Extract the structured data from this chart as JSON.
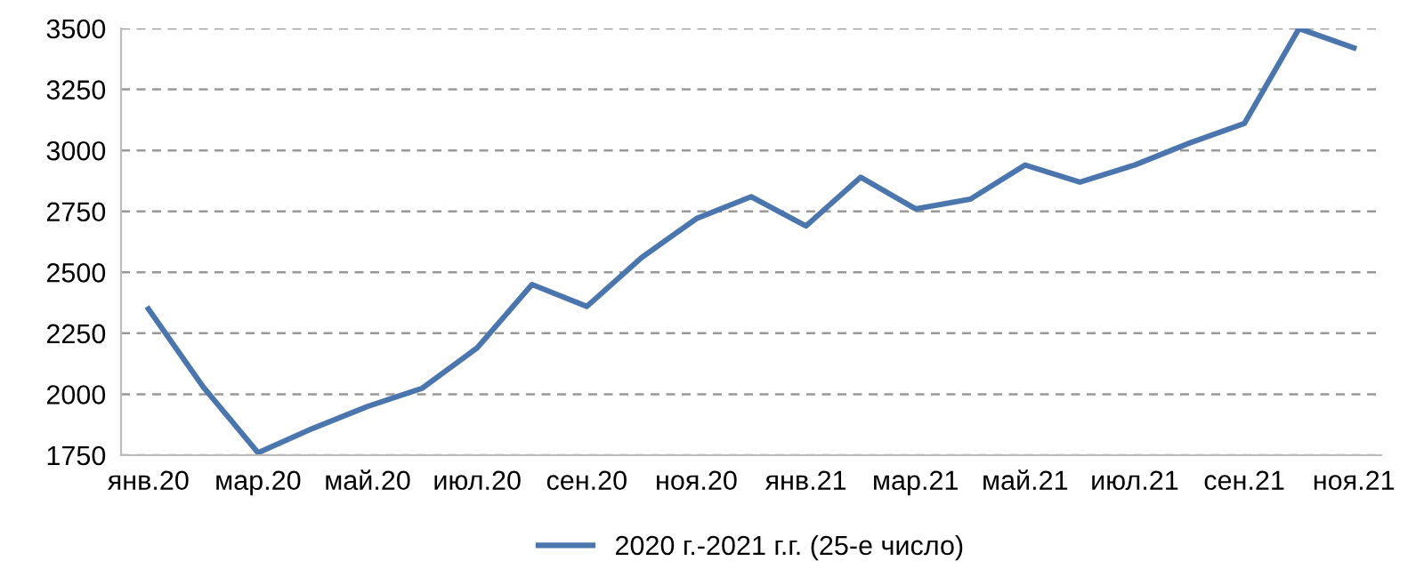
{
  "chart_data": {
    "type": "line",
    "categories": [
      "янв.20",
      null,
      "мар.20",
      null,
      "май.20",
      null,
      "июл.20",
      null,
      "сен.20",
      null,
      "ноя.20",
      null,
      "янв.21",
      null,
      "мар.21",
      null,
      "май.21",
      null,
      "июл.21",
      null,
      "сен.21",
      null,
      "ноя.21"
    ],
    "series": [
      {
        "name": "2020 г.-2021 г.г. (25-е число)",
        "color": "#4a76ad",
        "values": [
          2350,
          2030,
          1760,
          1860,
          1950,
          2025,
          2190,
          2450,
          2360,
          2560,
          2720,
          2810,
          2690,
          2890,
          2760,
          2800,
          2940,
          2870,
          2940,
          3030,
          3110,
          3500,
          3420
        ]
      }
    ],
    "ylim": [
      1750,
      3500
    ],
    "yticks": [
      1750,
      2000,
      2250,
      2500,
      2750,
      3000,
      3250,
      3500
    ],
    "grid": "y",
    "legend": "bottom",
    "marker": "none",
    "line_style": "solid"
  }
}
